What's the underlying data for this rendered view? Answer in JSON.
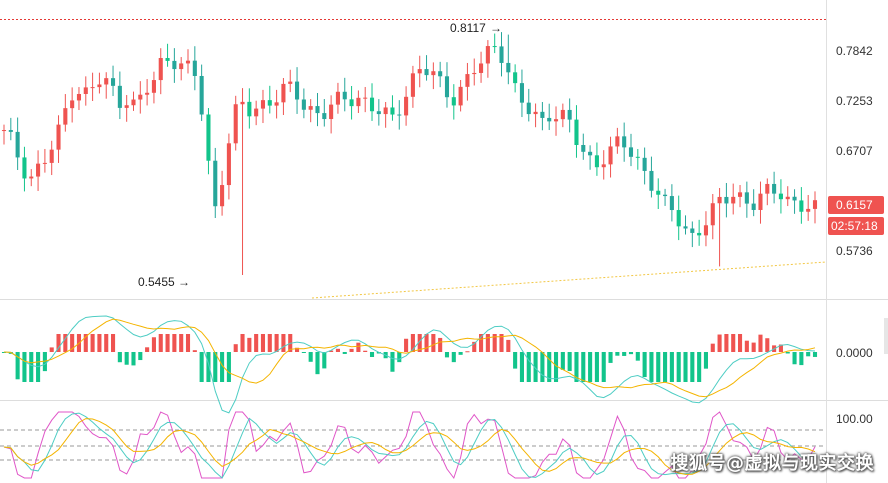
{
  "colors": {
    "up": "#ef5350",
    "down": "#26a69a",
    "down_bright": "#12c48b",
    "ma_fast": "#4ecdc4",
    "ma_slow": "#f4b400",
    "rsi_line": "#e056c8",
    "dashed": "#999999",
    "high_line": "#e53935",
    "trend_line": "#f2c744",
    "axis": "#cfcfcf"
  },
  "price_axis": {
    "ticks": [
      "0.7842",
      "0.7253",
      "0.6707",
      "0.5736"
    ],
    "tick_values": [
      0.7842,
      0.7253,
      0.6707,
      0.5736
    ],
    "range": [
      0.52,
      0.85
    ]
  },
  "macd_axis": {
    "ticks": [
      "0.0000"
    ]
  },
  "rsi_axis": {
    "ticks": [
      "100.00"
    ]
  },
  "annotations": {
    "high_label": "0.8117",
    "low_label": "0.5455"
  },
  "badges": {
    "last_price": "0.6157",
    "countdown": "02:57:18"
  },
  "watermark": "搜狐号@虚拟与现实交换",
  "chart_data": {
    "type": "candlestick",
    "title": "",
    "interval_count": 120,
    "ohlc_seed_path": [
      0.7,
      0.69,
      0.67,
      0.655,
      0.665,
      0.675,
      0.695,
      0.73,
      0.76,
      0.745,
      0.75,
      0.76,
      0.755,
      0.74,
      0.745,
      0.73,
      0.745,
      0.76,
      0.785,
      0.79,
      0.78,
      0.77,
      0.76,
      0.68,
      0.62,
      0.67,
      0.72,
      0.73,
      0.725,
      0.735,
      0.74,
      0.745,
      0.75,
      0.745,
      0.735,
      0.73,
      0.725,
      0.73,
      0.735,
      0.74,
      0.745,
      0.74,
      0.73,
      0.72,
      0.715,
      0.735,
      0.76,
      0.775,
      0.77,
      0.76,
      0.75,
      0.745,
      0.755,
      0.77,
      0.775,
      0.79,
      0.805,
      0.78,
      0.75,
      0.73,
      0.72,
      0.715,
      0.73,
      0.725,
      0.715,
      0.69,
      0.675,
      0.67,
      0.68,
      0.685,
      0.69,
      0.68,
      0.67,
      0.66,
      0.64,
      0.62,
      0.61,
      0.6,
      0.59,
      0.6,
      0.61,
      0.62,
      0.63,
      0.64,
      0.63,
      0.625,
      0.63,
      0.635,
      0.64,
      0.632,
      0.625,
      0.618,
      0.615
    ],
    "high": 0.8117,
    "low": 0.5455,
    "last": 0.6157,
    "price_ticks": [
      0.7842,
      0.7253,
      0.6707,
      0.5736
    ]
  }
}
